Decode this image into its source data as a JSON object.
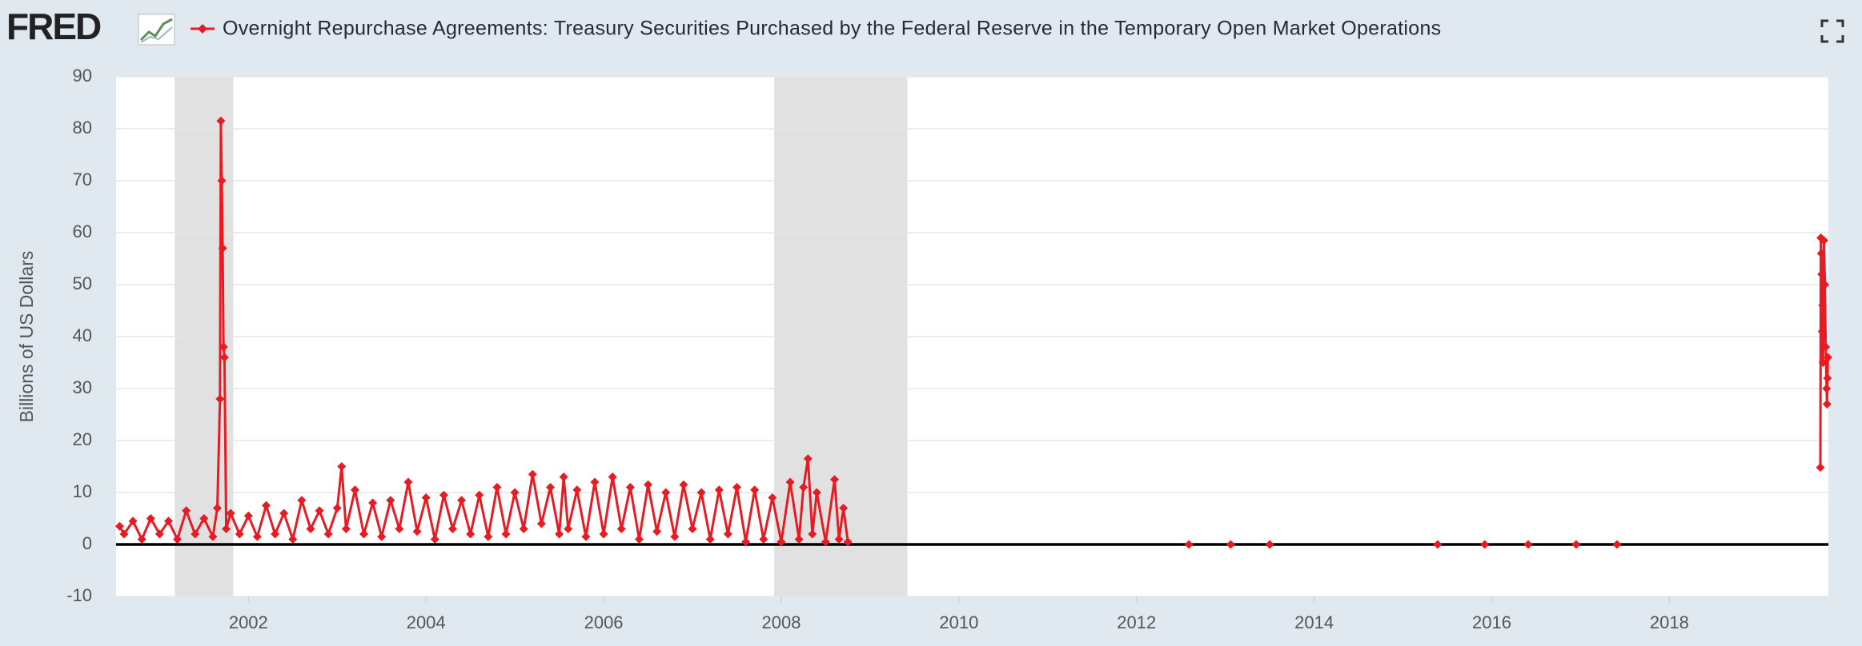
{
  "logo": "FRED",
  "chart_data": {
    "type": "line",
    "y_label": "Billions of US Dollars",
    "xlim": [
      2000.51,
      2019.79
    ],
    "xticks": [
      2002,
      2004,
      2006,
      2008,
      2010,
      2012,
      2014,
      2016,
      2018
    ],
    "ylim": [
      -10,
      90
    ],
    "yticks": [
      -10,
      0,
      10,
      20,
      30,
      40,
      50,
      60,
      70,
      80,
      90
    ],
    "grid": true,
    "recessions": [
      [
        2001.17,
        2001.83
      ],
      [
        2007.92,
        2009.42
      ]
    ],
    "series": [
      {
        "name": "Overnight Repurchase Agreements: Treasury Securities Purchased by the Federal Reserve in the Temporary Open Market Operations",
        "color": "#e81b23",
        "x": [
          2000.55,
          2000.6,
          2000.7,
          2000.8,
          2000.9,
          2001.0,
          2001.1,
          2001.2,
          2001.3,
          2001.4,
          2001.5,
          2001.6,
          2001.65,
          2001.68,
          2001.69,
          2001.7,
          2001.71,
          2001.72,
          2001.73,
          2001.75,
          2001.8,
          2001.9,
          2002.0,
          2002.1,
          2002.2,
          2002.3,
          2002.4,
          2002.5,
          2002.6,
          2002.7,
          2002.8,
          2002.9,
          2003.0,
          2003.05,
          2003.1,
          2003.2,
          2003.3,
          2003.4,
          2003.5,
          2003.6,
          2003.7,
          2003.8,
          2003.9,
          2004.0,
          2004.1,
          2004.2,
          2004.3,
          2004.4,
          2004.5,
          2004.6,
          2004.7,
          2004.8,
          2004.9,
          2005.0,
          2005.1,
          2005.2,
          2005.3,
          2005.4,
          2005.5,
          2005.55,
          2005.6,
          2005.7,
          2005.8,
          2005.9,
          2006.0,
          2006.1,
          2006.2,
          2006.3,
          2006.4,
          2006.5,
          2006.6,
          2006.7,
          2006.8,
          2006.9,
          2007.0,
          2007.1,
          2007.2,
          2007.3,
          2007.4,
          2007.5,
          2007.6,
          2007.7,
          2007.8,
          2007.9,
          2008.0,
          2008.1,
          2008.2,
          2008.25,
          2008.3,
          2008.35,
          2008.4,
          2008.5,
          2008.6,
          2008.65,
          2008.7,
          2008.75,
          null,
          2012.59,
          null,
          2013.06,
          null,
          2013.5,
          null,
          2015.39,
          null,
          2015.92,
          null,
          2016.41,
          null,
          2016.95,
          null,
          2017.41,
          null,
          2019.7,
          2019.705,
          2019.71,
          2019.715,
          2019.72,
          2019.725,
          2019.73,
          2019.74,
          2019.75,
          2019.76,
          2019.77,
          2019.775,
          2019.78,
          2019.785
        ],
        "values": [
          3.5,
          2,
          4.5,
          1,
          5,
          2,
          4.5,
          1,
          6.5,
          2,
          5,
          1.5,
          7,
          28,
          81.5,
          70,
          57,
          38,
          36,
          3,
          6,
          2,
          5.5,
          1.5,
          7.5,
          2,
          6,
          1,
          8.5,
          3,
          6.5,
          2,
          7,
          15,
          3,
          10.5,
          2,
          8,
          1.5,
          8.5,
          3,
          12,
          2.5,
          9,
          1,
          9.5,
          3,
          8.5,
          2,
          9.5,
          1.5,
          11,
          2,
          10,
          3,
          13.5,
          4,
          11,
          2,
          13,
          3,
          10.5,
          1.5,
          12,
          2,
          13,
          3,
          11,
          1,
          11.5,
          2.5,
          10,
          1.5,
          11.5,
          3,
          10,
          1,
          10.5,
          2,
          11,
          0.5,
          10.5,
          1,
          9,
          0.5,
          12,
          1,
          11,
          16.5,
          2,
          10,
          0.5,
          12.5,
          1,
          7,
          0.5,
          null,
          0,
          null,
          0,
          null,
          0,
          null,
          0,
          null,
          0,
          null,
          0,
          null,
          0,
          null,
          0,
          null,
          14.8,
          59,
          56,
          52,
          41,
          46,
          35,
          58.5,
          50,
          38,
          30,
          27,
          32,
          36
        ]
      }
    ]
  }
}
